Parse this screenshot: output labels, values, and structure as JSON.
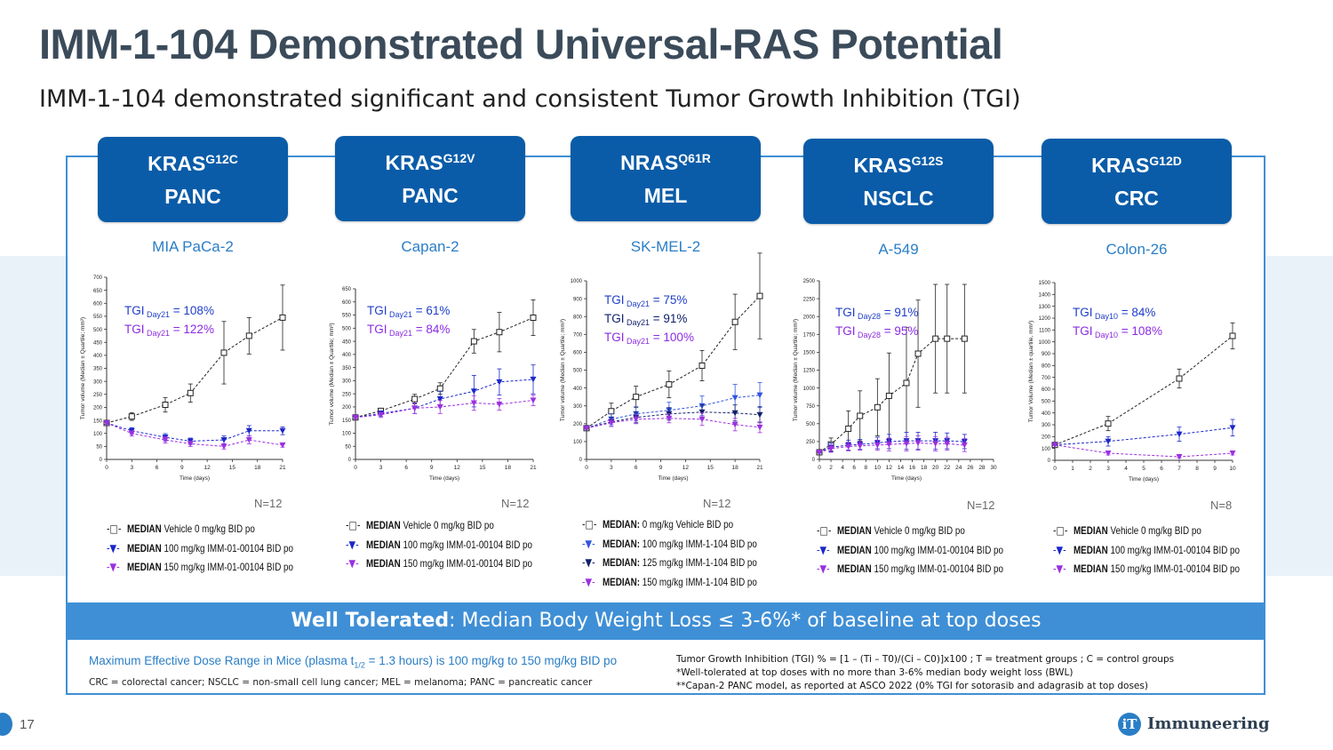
{
  "title": "IMM-1-104 Demonstrated Universal-RAS Potential",
  "subtitle": "IMM-1-104 demonstrated significant and consistent Tumor Growth Inhibition (TGI)",
  "panels": [
    {
      "gene": "KRAS",
      "mutation": "G12C",
      "tumor": "PANC",
      "cell_line": "MIA PaCa-2",
      "n": "N=12",
      "tgi": [
        {
          "text": "TGI",
          "sub": "Day21",
          "val": " = 108%",
          "color": "#1f3ec9"
        },
        {
          "text": "TGI",
          "sub": "Day21",
          "val": " = 122%",
          "color": "#8a2be2"
        }
      ],
      "legend": [
        {
          "mark": "-□-",
          "bold": "MEDIAN",
          "rest": " Vehicle 0 mg/kg BID po",
          "color": "#222"
        },
        {
          "mark": "-▼-",
          "bold": "MEDIAN",
          "rest": " 100 mg/kg IMM-01-00104 BID po",
          "color": "#1b27c9"
        },
        {
          "mark": "-▼-",
          "bold": "MEDIAN",
          "rest": " 150 mg/kg IMM-01-00104 BID po",
          "color": "#9b30e0"
        }
      ]
    },
    {
      "gene": "KRAS",
      "mutation": "G12V",
      "tumor": "PANC",
      "cell_line": "Capan-2",
      "n": "N=12",
      "tgi": [
        {
          "text": "TGI",
          "sub": "Day21",
          "val": " = 61%",
          "color": "#1f3ec9"
        },
        {
          "text": "TGI",
          "sub": "Day21",
          "val": " = 84%",
          "color": "#8a2be2"
        }
      ],
      "legend": [
        {
          "mark": "-□-",
          "bold": "MEDIAN",
          "rest": " Vehicle 0 mg/kg BID po",
          "color": "#222"
        },
        {
          "mark": "-▼-",
          "bold": "MEDIAN",
          "rest": " 100 mg/kg IMM-01-00104 BID po",
          "color": "#1b27c9"
        },
        {
          "mark": "-▼-",
          "bold": "MEDIAN",
          "rest": " 150 mg/kg IMM-01-00104 BID po",
          "color": "#9b30e0"
        }
      ]
    },
    {
      "gene": "NRAS",
      "mutation": "Q61R",
      "tumor": "MEL",
      "cell_line": "SK-MEL-2",
      "n": "N=12",
      "tgi": [
        {
          "text": "TGI",
          "sub": "Day21",
          "val": " = 75%",
          "color": "#1f3ec9"
        },
        {
          "text": "TGI",
          "sub": "Day21",
          "val": " = 91%",
          "color": "#10206a"
        },
        {
          "text": "TGI",
          "sub": "Day21",
          "val": " = 100%",
          "color": "#8a2be2"
        }
      ],
      "legend": [
        {
          "mark": "-□-",
          "bold": "MEDIAN:",
          "rest": " 0 mg/kg Vehicle BID po",
          "color": "#222"
        },
        {
          "mark": "-▼-",
          "bold": "MEDIAN:",
          "rest": " 100 mg/kg IMM-1-104 BID po",
          "color": "#3355e0"
        },
        {
          "mark": "-▼-",
          "bold": "MEDIAN:",
          "rest": " 125 mg/kg IMM-1-104 BID po",
          "color": "#10206a"
        },
        {
          "mark": "-▼-",
          "bold": "MEDIAN:",
          "rest": " 150 mg/kg IMM-1-104 BID po",
          "color": "#9b30e0"
        }
      ]
    },
    {
      "gene": "KRAS",
      "mutation": "G12S",
      "tumor": "NSCLC",
      "cell_line": "A-549",
      "n": "N=12",
      "tgi": [
        {
          "text": "TGI",
          "sub": "Day28",
          "val": " = 91%",
          "color": "#1f3ec9"
        },
        {
          "text": "TGI",
          "sub": "Day28",
          "val": " = 95%",
          "color": "#8a2be2"
        }
      ],
      "legend": [
        {
          "mark": "-□-",
          "bold": "MEDIAN",
          "rest": " Vehicle 0 mg/kg BID po",
          "color": "#222"
        },
        {
          "mark": "-▼-",
          "bold": "MEDIAN",
          "rest": " 100 mg/kg IMM-01-00104 BID po",
          "color": "#1b27c9"
        },
        {
          "mark": "-▼-",
          "bold": "MEDIAN",
          "rest": " 150 mg/kg IMM-01-00104 BID po",
          "color": "#9b30e0"
        }
      ]
    },
    {
      "gene": "KRAS",
      "mutation": "G12D",
      "tumor": "CRC",
      "cell_line": "Colon-26",
      "n": "N=8",
      "tgi": [
        {
          "text": "TGI",
          "sub": "Day10",
          "val": " = 84%",
          "color": "#1f3ec9"
        },
        {
          "text": "TGI",
          "sub": "Day10",
          "val": " = 108%",
          "color": "#8a2be2"
        }
      ],
      "legend": [
        {
          "mark": "-□-",
          "bold": "MEDIAN",
          "rest": " Vehicle 0 mg/kg BID po",
          "color": "#222"
        },
        {
          "mark": "-▼-",
          "bold": "MEDIAN",
          "rest": " 100 mg/kg IMM-01-00104 BID po",
          "color": "#1b27c9"
        },
        {
          "mark": "-▼-",
          "bold": "MEDIAN",
          "rest": " 150 mg/kg IMM-01-00104 BID po",
          "color": "#9b30e0"
        }
      ]
    }
  ],
  "chart_data": [
    {
      "type": "line",
      "xlabel": "Time (days)",
      "ylabel": "Tumor volume (Median ± Quartile; mm³)",
      "xlim": [
        0,
        21
      ],
      "ylim": [
        0,
        700
      ],
      "xticks": [
        0,
        3,
        6,
        9,
        12,
        15,
        18,
        21
      ],
      "yticks": [
        0,
        50,
        100,
        150,
        200,
        250,
        300,
        350,
        400,
        450,
        500,
        550,
        600,
        650,
        700
      ],
      "series": [
        {
          "name": "Vehicle",
          "color": "#222",
          "marker": "square",
          "x": [
            0,
            3,
            7,
            10,
            14,
            17,
            21
          ],
          "values": [
            140,
            165,
            210,
            255,
            410,
            475,
            545
          ],
          "err": [
            5,
            15,
            28,
            35,
            120,
            70,
            125
          ]
        },
        {
          "name": "100 mg/kg",
          "color": "#1b27c9",
          "marker": "tri",
          "x": [
            0,
            3,
            7,
            10,
            14,
            17,
            21
          ],
          "values": [
            140,
            110,
            85,
            70,
            75,
            110,
            110
          ],
          "err": [
            5,
            12,
            14,
            12,
            15,
            20,
            15
          ]
        },
        {
          "name": "150 mg/kg",
          "color": "#9b30e0",
          "marker": "tri",
          "x": [
            0,
            3,
            7,
            10,
            14,
            17,
            21
          ],
          "values": [
            140,
            100,
            75,
            60,
            50,
            75,
            55
          ],
          "err": [
            5,
            10,
            12,
            10,
            10,
            15,
            8
          ]
        }
      ]
    },
    {
      "type": "line",
      "xlabel": "Time (days)",
      "ylabel": "Tumor volume (Median ± Quartile; mm³)",
      "xlim": [
        0,
        21
      ],
      "ylim": [
        0,
        650
      ],
      "xticks": [
        0,
        3,
        6,
        9,
        12,
        15,
        18,
        21
      ],
      "yticks": [
        0,
        50,
        100,
        150,
        200,
        250,
        300,
        350,
        400,
        450,
        500,
        550,
        600,
        650
      ],
      "series": [
        {
          "name": "Vehicle",
          "color": "#222",
          "marker": "square",
          "x": [
            0,
            3,
            7,
            10,
            14,
            17,
            21
          ],
          "values": [
            160,
            185,
            230,
            270,
            450,
            485,
            540
          ],
          "err": [
            5,
            10,
            18,
            22,
            45,
            75,
            68
          ]
        },
        {
          "name": "100 mg/kg",
          "color": "#1b27c9",
          "marker": "tri",
          "x": [
            0,
            3,
            7,
            10,
            14,
            17,
            21
          ],
          "values": [
            160,
            175,
            195,
            230,
            260,
            295,
            305
          ],
          "err": [
            5,
            10,
            20,
            30,
            60,
            50,
            55
          ]
        },
        {
          "name": "150 mg/kg",
          "color": "#9b30e0",
          "marker": "tri",
          "x": [
            0,
            3,
            7,
            10,
            14,
            17,
            21
          ],
          "values": [
            160,
            170,
            195,
            200,
            215,
            210,
            225
          ],
          "err": [
            5,
            10,
            20,
            25,
            28,
            22,
            20
          ]
        }
      ]
    },
    {
      "type": "line",
      "xlabel": "Time (days)",
      "ylabel": "Tumor volume (Median ± Quartile; mm³)",
      "xlim": [
        0,
        21
      ],
      "ylim": [
        0,
        1000
      ],
      "xticks": [
        0,
        3,
        6,
        9,
        12,
        15,
        18,
        21
      ],
      "yticks": [
        0,
        100,
        200,
        300,
        400,
        500,
        600,
        700,
        800,
        900,
        1000
      ],
      "series": [
        {
          "name": "Vehicle",
          "color": "#222",
          "marker": "square",
          "x": [
            0,
            3,
            6,
            10,
            14,
            18,
            21
          ],
          "values": [
            175,
            270,
            350,
            420,
            525,
            770,
            915
          ],
          "err": [
            5,
            45,
            60,
            75,
            85,
            155,
            240
          ]
        },
        {
          "name": "100 mg/kg",
          "color": "#3355e0",
          "marker": "tri",
          "x": [
            0,
            3,
            6,
            10,
            14,
            18,
            21
          ],
          "values": [
            175,
            225,
            255,
            275,
            300,
            345,
            360
          ],
          "err": [
            5,
            30,
            40,
            45,
            55,
            75,
            70
          ]
        },
        {
          "name": "125 mg/kg",
          "color": "#10206a",
          "marker": "tri",
          "x": [
            0,
            3,
            6,
            10,
            14,
            18,
            21
          ],
          "values": [
            175,
            210,
            235,
            255,
            265,
            260,
            250
          ],
          "err": [
            5,
            25,
            30,
            35,
            40,
            45,
            45
          ]
        },
        {
          "name": "150 mg/kg",
          "color": "#9b30e0",
          "marker": "tri",
          "x": [
            0,
            3,
            6,
            10,
            14,
            18,
            21
          ],
          "values": [
            175,
            205,
            225,
            230,
            225,
            195,
            180
          ],
          "err": [
            5,
            20,
            25,
            25,
            35,
            35,
            30
          ]
        }
      ]
    },
    {
      "type": "line",
      "xlabel": "Time (days)",
      "ylabel": "Tumor volume (Median ± Quartile; mm³)",
      "xlim": [
        0,
        30
      ],
      "ylim": [
        0,
        2500
      ],
      "xticks": [
        0,
        2,
        4,
        6,
        8,
        10,
        12,
        14,
        16,
        18,
        20,
        22,
        24,
        26,
        28,
        30
      ],
      "yticks": [
        0,
        250,
        500,
        750,
        1000,
        1250,
        1500,
        1750,
        2000,
        2250,
        2500
      ],
      "series": [
        {
          "name": "Vehicle",
          "color": "#222",
          "marker": "square",
          "x": [
            0,
            2,
            5,
            7,
            10,
            12,
            15,
            17,
            20,
            22,
            25
          ],
          "values": [
            100,
            210,
            430,
            610,
            730,
            890,
            1070,
            1480,
            1690,
            1690,
            1690
          ],
          "err": [
            10,
            90,
            250,
            350,
            400,
            600,
            780,
            750,
            760,
            760,
            760
          ]
        },
        {
          "name": "100 mg/kg",
          "color": "#1b27c9",
          "marker": "tri",
          "x": [
            0,
            2,
            5,
            7,
            10,
            12,
            15,
            17,
            20,
            22,
            25
          ],
          "values": [
            100,
            170,
            200,
            210,
            230,
            250,
            260,
            260,
            260,
            260,
            250
          ],
          "err": [
            10,
            60,
            70,
            70,
            80,
            100,
            120,
            120,
            120,
            110,
            100
          ]
        },
        {
          "name": "150 mg/kg",
          "color": "#9b30e0",
          "marker": "tri",
          "x": [
            0,
            2,
            5,
            7,
            10,
            12,
            15,
            17,
            20,
            22,
            25
          ],
          "values": [
            100,
            150,
            180,
            190,
            200,
            210,
            220,
            230,
            220,
            220,
            200
          ],
          "err": [
            10,
            50,
            60,
            60,
            70,
            90,
            100,
            100,
            100,
            90,
            90
          ]
        }
      ]
    },
    {
      "type": "line",
      "xlabel": "Time (days)",
      "ylabel": "Tumor Volume (Median ± quartile, mm³)",
      "xlim": [
        0,
        10
      ],
      "ylim": [
        0,
        1500
      ],
      "xticks": [
        0,
        1,
        2,
        3,
        4,
        5,
        6,
        7,
        8,
        9,
        10
      ],
      "yticks": [
        0,
        100,
        200,
        300,
        400,
        500,
        600,
        700,
        800,
        900,
        1000,
        1100,
        1200,
        1300,
        1400,
        1500
      ],
      "series": [
        {
          "name": "Vehicle",
          "color": "#222",
          "marker": "square",
          "x": [
            0,
            3,
            7,
            10
          ],
          "values": [
            130,
            310,
            690,
            1050
          ],
          "err": [
            5,
            60,
            80,
            110
          ]
        },
        {
          "name": "100 mg/kg",
          "color": "#1b27c9",
          "marker": "tri",
          "x": [
            0,
            3,
            7,
            10
          ],
          "values": [
            130,
            160,
            220,
            275
          ],
          "err": [
            5,
            40,
            60,
            70
          ]
        },
        {
          "name": "150 mg/kg",
          "color": "#9b30e0",
          "marker": "tri",
          "x": [
            0,
            3,
            7,
            10
          ],
          "values": [
            130,
            60,
            30,
            60
          ],
          "err": [
            5,
            15,
            10,
            15
          ]
        }
      ]
    }
  ],
  "tolerated": {
    "bold": "Well Tolerated",
    "rest": ": Median Body Weight Loss ≤ 3-6%* of baseline at top doses"
  },
  "dose": {
    "pre": "Maximum Effective Dose Range in Mice (plasma t",
    "sub": "1/2",
    "post": " = 1.3 hours) is 100 mg/kg to 150 mg/kg BID po"
  },
  "abbreviations": "CRC = colorectal cancer; NSCLC = non-small cell lung cancer; MEL = melanoma; PANC = pancreatic cancer",
  "footnotes": [
    "Tumor Growth Inhibition (TGI) % = [1 – (Ti – T0)/(Ci – C0)]x100 ; T = treatment groups ; C = control groups",
    "*Well-tolerated at top doses with no more than 3-6% median body weight loss (BWL)",
    "**Capan-2 PANC model, as reported at ASCO 2022 (0% TGI for sotorasib and adagrasib at top doses)"
  ],
  "page_number": "17",
  "logo": {
    "mark": "iT",
    "name": "Immuneering"
  }
}
